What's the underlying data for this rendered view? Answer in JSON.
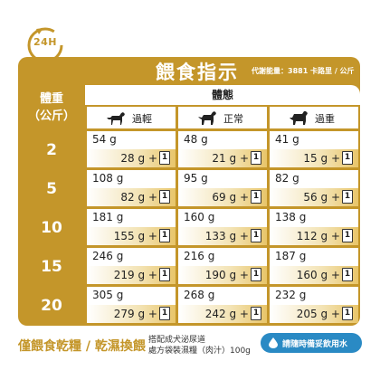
{
  "badge": "24H",
  "header": {
    "title": "餵食指示",
    "subtitle": "代謝能量：3881 卡路里 / 公斤"
  },
  "table": {
    "row_header": [
      "體重",
      "（公斤）"
    ],
    "body_shape_label": "體態",
    "columns": [
      "過輕",
      "正常",
      "過重"
    ],
    "pouch_count": "1",
    "rows": [
      {
        "weight": "2",
        "cells": [
          {
            "dry": "54 g",
            "wet": "28 g +"
          },
          {
            "dry": "48 g",
            "wet": "21 g +"
          },
          {
            "dry": "41 g",
            "wet": "15 g +"
          }
        ]
      },
      {
        "weight": "5",
        "cells": [
          {
            "dry": "108 g",
            "wet": "82 g +"
          },
          {
            "dry": "95 g",
            "wet": "69 g +"
          },
          {
            "dry": "82 g",
            "wet": "56 g +"
          }
        ]
      },
      {
        "weight": "10",
        "cells": [
          {
            "dry": "181 g",
            "wet": "155 g +"
          },
          {
            "dry": "160 g",
            "wet": "133 g +"
          },
          {
            "dry": "138 g",
            "wet": "112 g +"
          }
        ]
      },
      {
        "weight": "15",
        "cells": [
          {
            "dry": "246 g",
            "wet": "219 g +"
          },
          {
            "dry": "216 g",
            "wet": "190 g +"
          },
          {
            "dry": "187 g",
            "wet": "160 g +"
          }
        ]
      },
      {
        "weight": "20",
        "cells": [
          {
            "dry": "305 g",
            "wet": "279 g +"
          },
          {
            "dry": "268 g",
            "wet": "242 g +"
          },
          {
            "dry": "232 g",
            "wet": "205 g +"
          }
        ]
      }
    ]
  },
  "footer": {
    "title": "僅餵食乾糧 / 乾濕換餵",
    "note_line1": "搭配成犬泌尿道",
    "note_line2": "處方袋裝濕糧（肉汁）100g",
    "water_tag": "請隨時備妥飲用水"
  },
  "colors": {
    "gold": "#c4962a",
    "water_blue": "#2a8ac4"
  }
}
